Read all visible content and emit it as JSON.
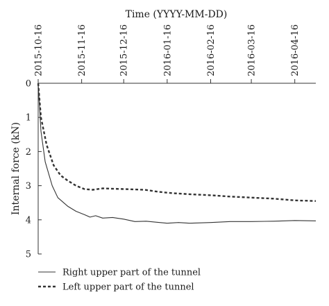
{
  "chart_data": {
    "type": "line",
    "xlabel": "Time (YYYY-MM-DD)",
    "ylabel": "Internal force (kN)",
    "x_axis_position": "top",
    "y_axis_inverted": true,
    "xlim": [
      "2015-10-16",
      "2016-05-01"
    ],
    "ylim": [
      0,
      5
    ],
    "x_ticks": [
      "2015-10-16",
      "2015-11-16",
      "2015-12-16",
      "2016-01-16",
      "2016-02-16",
      "2016-03-16",
      "2016-04-16"
    ],
    "y_ticks": [
      "0",
      "1",
      "2",
      "3",
      "4",
      "5"
    ],
    "grid": false,
    "legend_position": "bottom-left",
    "series": [
      {
        "name": "Right upper part of the tunnel",
        "style": "solid",
        "color": "#333333",
        "points": [
          [
            "2015-10-16",
            0.0
          ],
          [
            "2015-10-18",
            1.4
          ],
          [
            "2015-10-21",
            2.3
          ],
          [
            "2015-10-26",
            3.0
          ],
          [
            "2015-10-30",
            3.35
          ],
          [
            "2015-11-06",
            3.6
          ],
          [
            "2015-11-12",
            3.75
          ],
          [
            "2015-11-18",
            3.85
          ],
          [
            "2015-11-22",
            3.92
          ],
          [
            "2015-11-26",
            3.88
          ],
          [
            "2015-12-01",
            3.95
          ],
          [
            "2015-12-08",
            3.93
          ],
          [
            "2015-12-16",
            3.98
          ],
          [
            "2015-12-24",
            4.05
          ],
          [
            "2016-01-01",
            4.04
          ],
          [
            "2016-01-08",
            4.07
          ],
          [
            "2016-01-16",
            4.1
          ],
          [
            "2016-01-24",
            4.08
          ],
          [
            "2016-02-01",
            4.1
          ],
          [
            "2016-02-16",
            4.08
          ],
          [
            "2016-03-01",
            4.05
          ],
          [
            "2016-03-16",
            4.05
          ],
          [
            "2016-04-01",
            4.04
          ],
          [
            "2016-04-16",
            4.02
          ],
          [
            "2016-05-01",
            4.03
          ]
        ]
      },
      {
        "name": "Left upper part of the tunnel",
        "style": "dashed",
        "color": "#333333",
        "points": [
          [
            "2015-10-16",
            0.0
          ],
          [
            "2015-10-18",
            1.0
          ],
          [
            "2015-10-22",
            1.8
          ],
          [
            "2015-10-27",
            2.4
          ],
          [
            "2015-11-01",
            2.7
          ],
          [
            "2015-11-06",
            2.85
          ],
          [
            "2015-11-12",
            3.0
          ],
          [
            "2015-11-18",
            3.1
          ],
          [
            "2015-11-24",
            3.12
          ],
          [
            "2015-12-01",
            3.08
          ],
          [
            "2015-12-16",
            3.1
          ],
          [
            "2015-12-31",
            3.12
          ],
          [
            "2016-01-10",
            3.18
          ],
          [
            "2016-01-20",
            3.22
          ],
          [
            "2016-02-01",
            3.25
          ],
          [
            "2016-02-16",
            3.28
          ],
          [
            "2016-03-01",
            3.32
          ],
          [
            "2016-03-16",
            3.35
          ],
          [
            "2016-04-01",
            3.38
          ],
          [
            "2016-04-16",
            3.43
          ],
          [
            "2016-05-01",
            3.45
          ]
        ]
      }
    ]
  }
}
